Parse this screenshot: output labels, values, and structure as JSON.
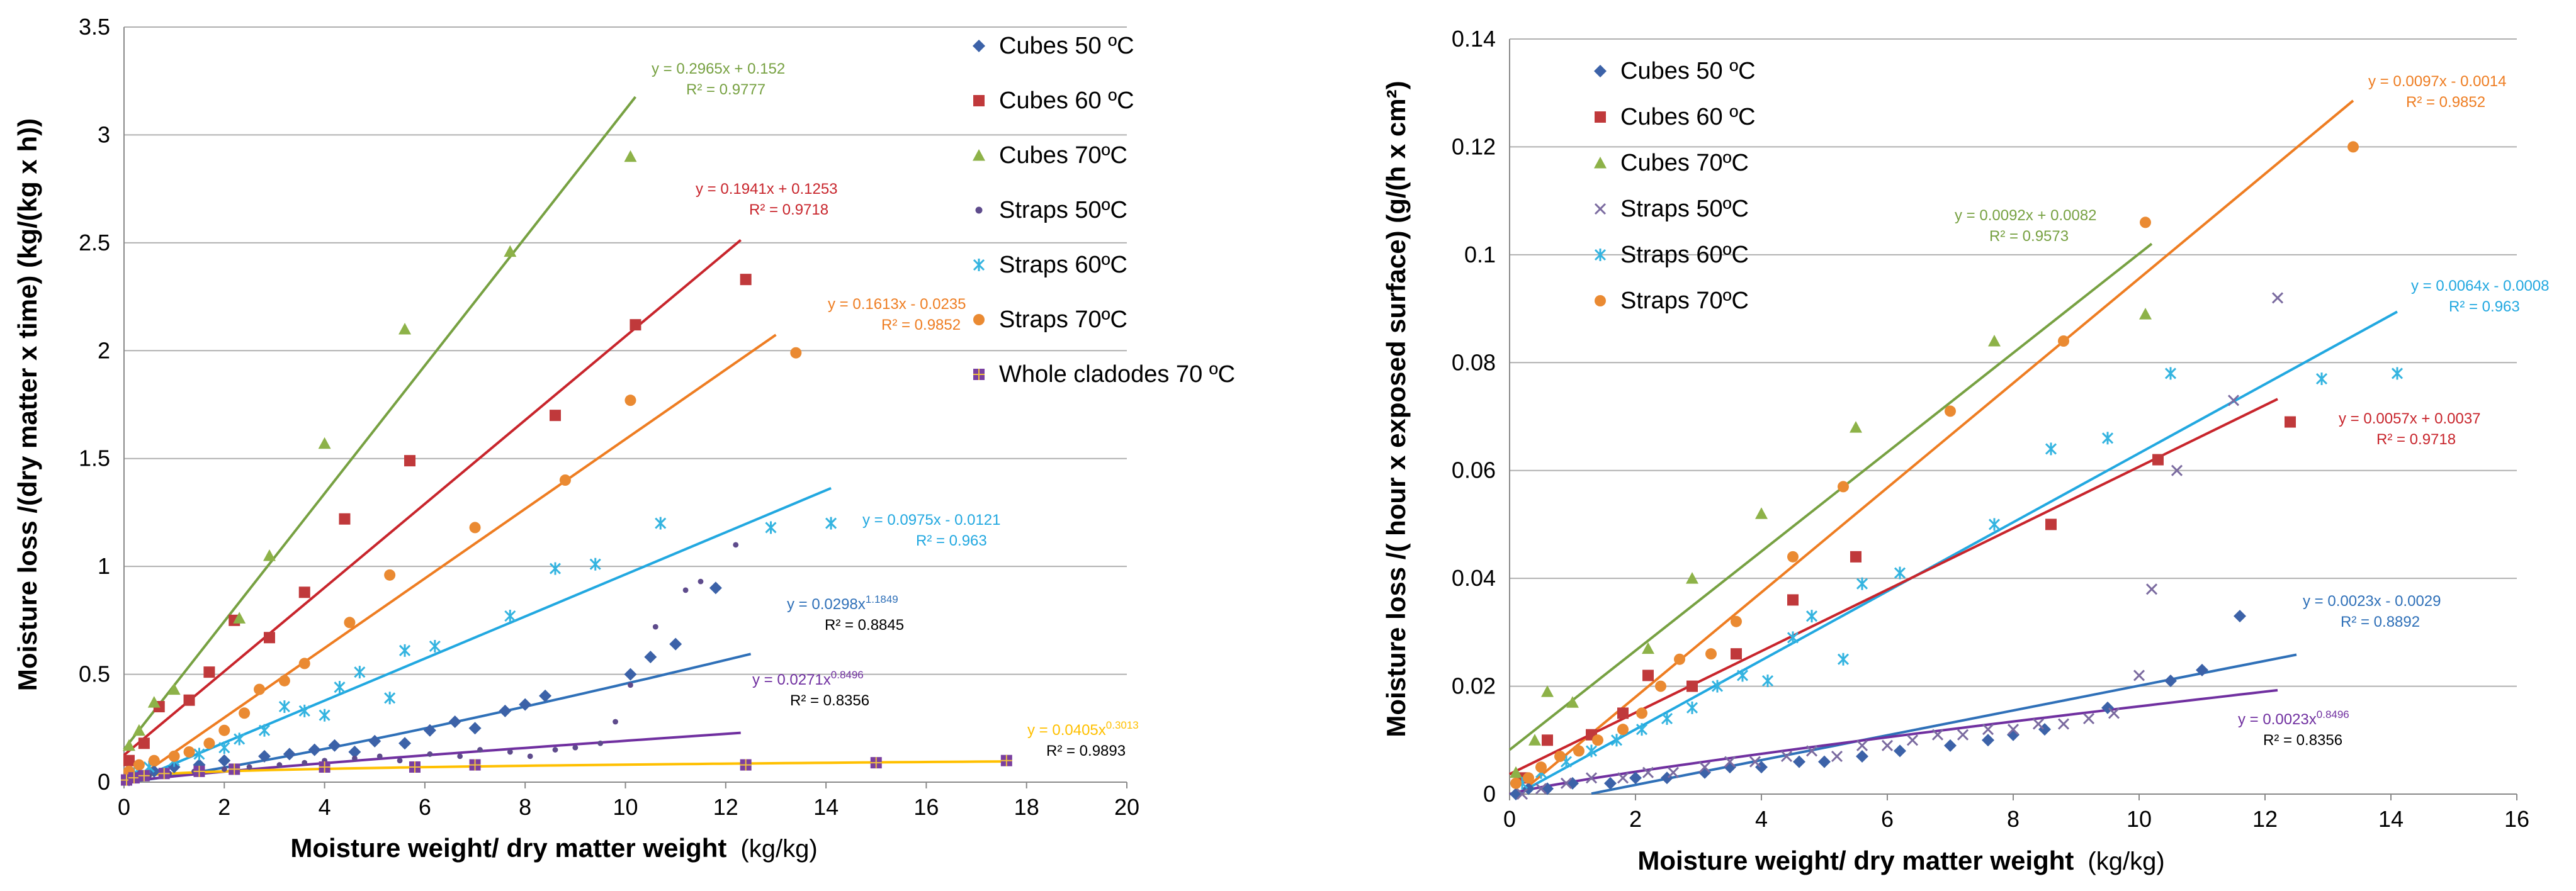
{
  "chart_data": [
    {
      "type": "scatter",
      "panel": "left",
      "xlabel": "Moisture  weight/ dry matter weight",
      "xunit": "(kg/kg)",
      "ylabel": "Moisture loss /(dry matter x time) (kg/(kg x h))",
      "xlim": [
        0,
        20
      ],
      "ylim": [
        0,
        3.5
      ],
      "xticks": [
        "0",
        "2",
        "4",
        "6",
        "8",
        "10",
        "12",
        "14",
        "16",
        "18",
        "20"
      ],
      "yticks": [
        "0",
        "0.5",
        "1",
        "1.5",
        "2",
        "2.5",
        "3",
        "3.5"
      ],
      "grid": "horizontal",
      "legend_position": "top-right",
      "series": [
        {
          "name": "Cubes 50 ºC",
          "marker": "diamond",
          "color": "#3c62a8",
          "x": [
            0.1,
            0.3,
            0.6,
            1.0,
            1.5,
            2.0,
            2.8,
            3.3,
            3.8,
            4.2,
            4.6,
            5.0,
            5.6,
            6.1,
            6.6,
            7.0,
            7.6,
            8.0,
            8.4,
            10.1,
            10.5,
            11.0,
            11.8
          ],
          "y": [
            0.01,
            0.03,
            0.05,
            0.07,
            0.08,
            0.1,
            0.12,
            0.13,
            0.15,
            0.17,
            0.14,
            0.19,
            0.18,
            0.24,
            0.28,
            0.25,
            0.33,
            0.36,
            0.4,
            0.5,
            0.58,
            0.64,
            0.9
          ]
        },
        {
          "name": "Cubes 60 ºC",
          "marker": "square",
          "color": "#c0393b",
          "x": [
            0.1,
            0.4,
            0.7,
            1.3,
            1.7,
            2.2,
            2.9,
            3.6,
            4.4,
            5.7,
            8.6,
            10.2,
            12.4
          ],
          "y": [
            0.1,
            0.18,
            0.35,
            0.38,
            0.51,
            0.75,
            0.67,
            0.88,
            1.22,
            1.49,
            1.7,
            2.12,
            2.33
          ]
        },
        {
          "name": "Cubes 70ºC",
          "marker": "triangle",
          "color": "#8db248",
          "x": [
            0.1,
            0.3,
            0.6,
            1.0,
            2.3,
            2.9,
            4.0,
            5.6,
            7.7,
            10.1
          ],
          "y": [
            0.17,
            0.24,
            0.37,
            0.43,
            0.76,
            1.05,
            1.57,
            2.1,
            2.46,
            2.9
          ]
        },
        {
          "name": "Straps 50ºC",
          "marker": "circle-small",
          "color": "#5e4b8c",
          "x": [
            0.2,
            0.5,
            0.9,
            1.4,
            2.0,
            2.5,
            3.1,
            3.6,
            4.0,
            4.6,
            5.1,
            5.5,
            6.1,
            6.7,
            7.1,
            7.7,
            8.1,
            8.6,
            9.0,
            9.5,
            9.8,
            10.1,
            10.6,
            11.2,
            11.5,
            12.2
          ],
          "y": [
            0.01,
            0.03,
            0.04,
            0.05,
            0.06,
            0.07,
            0.08,
            0.09,
            0.1,
            0.11,
            0.12,
            0.1,
            0.13,
            0.12,
            0.15,
            0.14,
            0.12,
            0.15,
            0.16,
            0.18,
            0.28,
            0.45,
            0.72,
            0.89,
            0.93,
            1.1
          ]
        },
        {
          "name": "Straps 60ºC",
          "marker": "asterisk",
          "color": "#34b4e0",
          "x": [
            0.2,
            0.5,
            1.0,
            1.5,
            2.0,
            2.3,
            2.8,
            3.2,
            3.6,
            4.0,
            4.3,
            4.7,
            5.3,
            5.6,
            6.2,
            7.7,
            8.6,
            9.4,
            10.7,
            12.9,
            14.1
          ],
          "y": [
            0.04,
            0.07,
            0.1,
            0.13,
            0.16,
            0.2,
            0.24,
            0.35,
            0.33,
            0.31,
            0.44,
            0.51,
            0.39,
            0.61,
            0.63,
            0.77,
            0.99,
            1.01,
            1.2,
            1.18,
            1.2
          ]
        },
        {
          "name": "Straps 70ºC",
          "marker": "circle",
          "color": "#ea8a32",
          "x": [
            0.1,
            0.3,
            0.6,
            1.0,
            1.3,
            1.7,
            2.0,
            2.4,
            2.7,
            3.2,
            3.6,
            4.5,
            5.3,
            7.0,
            8.8,
            10.1,
            13.4
          ],
          "y": [
            0.05,
            0.08,
            0.1,
            0.12,
            0.14,
            0.18,
            0.24,
            0.32,
            0.43,
            0.47,
            0.55,
            0.74,
            0.96,
            1.18,
            1.4,
            1.77,
            1.99
          ]
        },
        {
          "name": "Whole cladodes 70 ºC",
          "marker": "square-cross",
          "color": "#7a3fa0",
          "x": [
            0.05,
            0.2,
            0.4,
            0.8,
            1.5,
            2.2,
            4.0,
            5.8,
            7.0,
            12.4,
            15.0,
            17.6
          ],
          "y": [
            0.01,
            0.02,
            0.03,
            0.04,
            0.05,
            0.06,
            0.07,
            0.07,
            0.08,
            0.08,
            0.09,
            0.1
          ]
        }
      ],
      "trendlines": [
        {
          "series": "Cubes 70ºC",
          "kind": "linear",
          "slope": 0.2965,
          "intercept": 0.152,
          "x_range": [
            0,
            10.2
          ],
          "color": "#77a142",
          "label_eq": "y = 0.2965x + 0.152",
          "label_r2": "R² = 0.9777"
        },
        {
          "series": "Cubes 60 ºC",
          "kind": "linear",
          "slope": 0.1941,
          "intercept": 0.1253,
          "x_range": [
            0,
            12.3
          ],
          "color": "#c8252c",
          "label_eq": "y = 0.1941x + 0.1253",
          "label_r2": "R² = 0.9718"
        },
        {
          "series": "Straps 70ºC",
          "kind": "linear",
          "slope": 0.1613,
          "intercept": -0.0235,
          "x_range": [
            0.15,
            13.0
          ],
          "color": "#ee7d22",
          "label_eq": "y = 0.1613x - 0.0235",
          "label_r2": "R² = 0.9852"
        },
        {
          "series": "Straps 60ºC",
          "kind": "linear",
          "slope": 0.0975,
          "intercept": -0.0121,
          "x_range": [
            0.12,
            14.1
          ],
          "color": "#22a8e0",
          "label_eq": "y = 0.0975x - 0.0121",
          "label_r2": "R² = 0.963"
        },
        {
          "series": "Cubes 50 ºC",
          "kind": "power",
          "a": 0.0298,
          "b": 1.1849,
          "x_range": [
            0,
            12.5
          ],
          "color": "#2f70b8",
          "label_eq": "y = 0.0298x",
          "label_exp": "1.1849",
          "label_r2": "R² = 0.8845"
        },
        {
          "series": "Straps 50ºC",
          "kind": "power",
          "a": 0.0271,
          "b": 0.8496,
          "x_range": [
            0,
            12.3
          ],
          "color": "#7030a0",
          "label_eq": "y = 0.0271x",
          "label_exp": "0.8496",
          "label_r2": "R² = 0.8356"
        },
        {
          "series": "Whole cladodes 70 ºC",
          "kind": "power",
          "a": 0.0405,
          "b": 0.3013,
          "x_range": [
            0,
            17.6
          ],
          "color": "#ffc000",
          "label_eq": "y = 0.0405x",
          "label_exp": "0.3013",
          "label_r2": "R² = 0.9893"
        }
      ]
    },
    {
      "type": "scatter",
      "panel": "right",
      "xlabel": "Moisture  weight/ dry matter weight",
      "xunit": "(kg/kg)",
      "ylabel": "Moisture  loss /( hour x exposed surface) (g/(h x cm²)",
      "xlim": [
        0,
        16
      ],
      "ylim": [
        0,
        0.14
      ],
      "xticks": [
        "0",
        "2",
        "4",
        "6",
        "8",
        "10",
        "12",
        "14",
        "16"
      ],
      "yticks": [
        "0",
        "0.02",
        "0.04",
        "0.06",
        "0.08",
        "0.1",
        "0.12",
        "0.14"
      ],
      "grid": "horizontal",
      "legend_position": "top-left",
      "series": [
        {
          "name": "Cubes 50 ºC",
          "marker": "diamond",
          "color": "#3c62a8",
          "x": [
            0.1,
            0.3,
            0.6,
            1.0,
            1.6,
            2.0,
            2.5,
            3.1,
            3.5,
            4.0,
            4.6,
            5.0,
            5.6,
            6.2,
            7.0,
            7.6,
            8.0,
            8.5,
            9.5,
            10.5,
            11.0,
            11.6
          ],
          "y": [
            0.0,
            0.001,
            0.001,
            0.002,
            0.002,
            0.003,
            0.003,
            0.004,
            0.005,
            0.005,
            0.006,
            0.006,
            0.007,
            0.008,
            0.009,
            0.01,
            0.011,
            0.012,
            0.016,
            0.021,
            0.023,
            0.033
          ]
        },
        {
          "name": "Cubes 60 ºC",
          "marker": "square",
          "color": "#c0393b",
          "x": [
            0.2,
            0.6,
            1.3,
            1.8,
            2.2,
            2.9,
            3.6,
            4.5,
            5.5,
            8.6,
            10.3,
            12.4
          ],
          "y": [
            0.003,
            0.01,
            0.011,
            0.015,
            0.022,
            0.02,
            0.026,
            0.036,
            0.044,
            0.05,
            0.062,
            0.069
          ]
        },
        {
          "name": "Cubes 70ºC",
          "marker": "triangle",
          "color": "#8db248",
          "x": [
            0.1,
            0.4,
            0.6,
            1.0,
            2.2,
            2.9,
            4.0,
            5.5,
            7.7,
            10.1
          ],
          "y": [
            0.004,
            0.01,
            0.019,
            0.017,
            0.027,
            0.04,
            0.052,
            0.068,
            0.084,
            0.089
          ]
        },
        {
          "name": "Straps 50ºC",
          "marker": "x",
          "color": "#7b6ba0",
          "x": [
            0.2,
            0.5,
            0.9,
            1.3,
            1.8,
            2.2,
            2.6,
            3.1,
            3.5,
            3.9,
            4.4,
            4.8,
            5.2,
            5.6,
            6.0,
            6.4,
            6.8,
            7.2,
            7.6,
            8.0,
            8.4,
            8.8,
            9.2,
            9.6,
            10.0,
            10.2,
            10.6,
            11.5,
            12.2
          ],
          "y": [
            0.0,
            0.001,
            0.002,
            0.003,
            0.003,
            0.004,
            0.004,
            0.005,
            0.006,
            0.006,
            0.007,
            0.008,
            0.007,
            0.009,
            0.009,
            0.01,
            0.011,
            0.011,
            0.012,
            0.012,
            0.013,
            0.013,
            0.014,
            0.015,
            0.022,
            0.038,
            0.06,
            0.073,
            0.092
          ]
        },
        {
          "name": "Straps 60ºC",
          "marker": "asterisk",
          "color": "#34b4e0",
          "x": [
            0.2,
            0.5,
            0.9,
            1.3,
            1.7,
            2.1,
            2.5,
            2.9,
            3.3,
            3.7,
            4.1,
            4.5,
            4.8,
            5.3,
            5.6,
            6.2,
            7.7,
            8.6,
            9.5,
            10.5,
            12.9,
            14.1
          ],
          "y": [
            0.002,
            0.004,
            0.006,
            0.008,
            0.01,
            0.012,
            0.014,
            0.016,
            0.02,
            0.022,
            0.021,
            0.029,
            0.033,
            0.025,
            0.039,
            0.041,
            0.05,
            0.064,
            0.066,
            0.078,
            0.077,
            0.078
          ]
        },
        {
          "name": "Straps 70ºC",
          "marker": "circle",
          "color": "#ea8a32",
          "x": [
            0.1,
            0.3,
            0.5,
            0.8,
            1.1,
            1.4,
            1.8,
            2.1,
            2.4,
            2.7,
            3.2,
            3.6,
            4.5,
            5.3,
            7.0,
            8.8,
            10.1,
            13.4
          ],
          "y": [
            0.002,
            0.003,
            0.005,
            0.007,
            0.008,
            0.01,
            0.012,
            0.015,
            0.02,
            0.025,
            0.026,
            0.032,
            0.044,
            0.057,
            0.071,
            0.084,
            0.106,
            0.12
          ]
        }
      ],
      "trendlines": [
        {
          "series": "Cubes 70ºC",
          "kind": "linear",
          "slope": 0.0092,
          "intercept": 0.0082,
          "x_range": [
            0,
            10.2
          ],
          "color": "#77a142",
          "label_eq": "y = 0.0092x + 0.0082",
          "label_r2": "R² = 0.9573"
        },
        {
          "series": "Straps 70ºC",
          "kind": "linear",
          "slope": 0.0097,
          "intercept": -0.0014,
          "x_range": [
            0.15,
            13.4
          ],
          "color": "#ee7d22",
          "label_eq": "y = 0.0097x - 0.0014",
          "label_r2": "R² = 0.9852"
        },
        {
          "series": "Straps 60ºC",
          "kind": "linear",
          "slope": 0.0064,
          "intercept": -0.0008,
          "x_range": [
            0.13,
            14.1
          ],
          "color": "#22a8e0",
          "label_eq": "y = 0.0064x - 0.0008",
          "label_r2": "R² = 0.963"
        },
        {
          "series": "Cubes 60 ºC",
          "kind": "linear",
          "slope": 0.0057,
          "intercept": 0.0037,
          "x_range": [
            0,
            12.2
          ],
          "color": "#c8252c",
          "label_eq": "y = 0.0057x + 0.0037",
          "label_r2": "R² = 0.9718"
        },
        {
          "series": "Cubes 50 ºC",
          "kind": "linear",
          "slope": 0.0023,
          "intercept": -0.0029,
          "x_range": [
            1.3,
            12.5
          ],
          "color": "#2f70b8",
          "label_eq": "y = 0.0023x - 0.0029",
          "label_r2": "R² = 0.8892"
        },
        {
          "series": "Straps 50ºC",
          "kind": "power",
          "a": 0.0023,
          "b": 0.8496,
          "x_range": [
            0,
            12.2
          ],
          "color": "#7030a0",
          "label_eq": "y = 0.0023x",
          "label_exp": "0.8496",
          "label_r2": "R² = 0.8356"
        }
      ]
    }
  ]
}
